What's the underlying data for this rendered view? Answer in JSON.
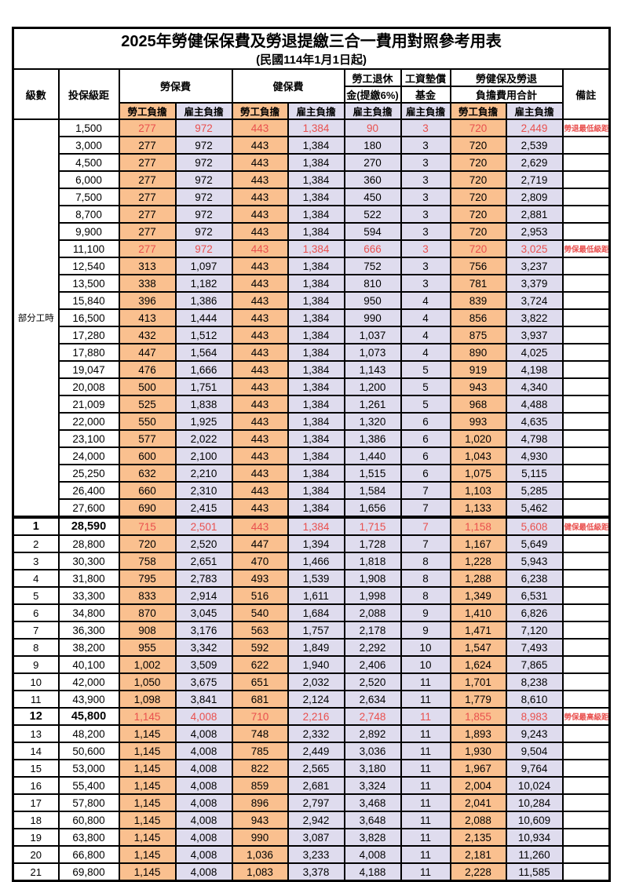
{
  "title": "2025年勞健保保費及勞退提繳三合一費用對照參考用表",
  "subtitle": "(民國114年1月1日起)",
  "colors": {
    "employee_share_bg": "#FAC08F",
    "employer_share_bg": "#DFDCEE",
    "highlight_red": "#E9504E",
    "border": "#000000"
  },
  "header": {
    "level": "級數",
    "bracket": "投保級距",
    "labor_insurance": "勞保費",
    "health_insurance": "健保費",
    "pension_line1": "勞工退休",
    "pension_line2": "金(提繳6%)",
    "wage_fund_line1": "工資墊償",
    "wage_fund_line2": "基金",
    "total_line1": "勞健保及勞退",
    "total_line2": "負擔費用合計",
    "remark": "備註",
    "employee": "勞工負擔",
    "employer": "雇主負擔"
  },
  "part_time_label": "部分工時",
  "part_time_rowspan": 23,
  "rows": [
    {
      "level": "",
      "bracket": "1,500",
      "li_emp": "277",
      "li_er": "972",
      "hi_emp": "443",
      "hi_er": "1,384",
      "pension": "90",
      "fund": "3",
      "tot_emp": "720",
      "tot_er": "2,449",
      "remark": "勞退最低級距",
      "red": true,
      "bold": false,
      "thick_top": false
    },
    {
      "level": "",
      "bracket": "3,000",
      "li_emp": "277",
      "li_er": "972",
      "hi_emp": "443",
      "hi_er": "1,384",
      "pension": "180",
      "fund": "3",
      "tot_emp": "720",
      "tot_er": "2,539",
      "remark": "",
      "red": false,
      "bold": false,
      "thick_top": false
    },
    {
      "level": "",
      "bracket": "4,500",
      "li_emp": "277",
      "li_er": "972",
      "hi_emp": "443",
      "hi_er": "1,384",
      "pension": "270",
      "fund": "3",
      "tot_emp": "720",
      "tot_er": "2,629",
      "remark": "",
      "red": false,
      "bold": false,
      "thick_top": false
    },
    {
      "level": "",
      "bracket": "6,000",
      "li_emp": "277",
      "li_er": "972",
      "hi_emp": "443",
      "hi_er": "1,384",
      "pension": "360",
      "fund": "3",
      "tot_emp": "720",
      "tot_er": "2,719",
      "remark": "",
      "red": false,
      "bold": false,
      "thick_top": false
    },
    {
      "level": "",
      "bracket": "7,500",
      "li_emp": "277",
      "li_er": "972",
      "hi_emp": "443",
      "hi_er": "1,384",
      "pension": "450",
      "fund": "3",
      "tot_emp": "720",
      "tot_er": "2,809",
      "remark": "",
      "red": false,
      "bold": false,
      "thick_top": false
    },
    {
      "level": "",
      "bracket": "8,700",
      "li_emp": "277",
      "li_er": "972",
      "hi_emp": "443",
      "hi_er": "1,384",
      "pension": "522",
      "fund": "3",
      "tot_emp": "720",
      "tot_er": "2,881",
      "remark": "",
      "red": false,
      "bold": false,
      "thick_top": false
    },
    {
      "level": "",
      "bracket": "9,900",
      "li_emp": "277",
      "li_er": "972",
      "hi_emp": "443",
      "hi_er": "1,384",
      "pension": "594",
      "fund": "3",
      "tot_emp": "720",
      "tot_er": "2,953",
      "remark": "",
      "red": false,
      "bold": false,
      "thick_top": false
    },
    {
      "level": "",
      "bracket": "11,100",
      "li_emp": "277",
      "li_er": "972",
      "hi_emp": "443",
      "hi_er": "1,384",
      "pension": "666",
      "fund": "3",
      "tot_emp": "720",
      "tot_er": "3,025",
      "remark": "勞保最低級距",
      "red": true,
      "bold": false,
      "thick_top": false
    },
    {
      "level": "",
      "bracket": "12,540",
      "li_emp": "313",
      "li_er": "1,097",
      "hi_emp": "443",
      "hi_er": "1,384",
      "pension": "752",
      "fund": "3",
      "tot_emp": "756",
      "tot_er": "3,237",
      "remark": "",
      "red": false,
      "bold": false,
      "thick_top": false
    },
    {
      "level": "",
      "bracket": "13,500",
      "li_emp": "338",
      "li_er": "1,182",
      "hi_emp": "443",
      "hi_er": "1,384",
      "pension": "810",
      "fund": "3",
      "tot_emp": "781",
      "tot_er": "3,379",
      "remark": "",
      "red": false,
      "bold": false,
      "thick_top": false
    },
    {
      "level": "",
      "bracket": "15,840",
      "li_emp": "396",
      "li_er": "1,386",
      "hi_emp": "443",
      "hi_er": "1,384",
      "pension": "950",
      "fund": "4",
      "tot_emp": "839",
      "tot_er": "3,724",
      "remark": "",
      "red": false,
      "bold": false,
      "thick_top": false
    },
    {
      "level": "",
      "bracket": "16,500",
      "li_emp": "413",
      "li_er": "1,444",
      "hi_emp": "443",
      "hi_er": "1,384",
      "pension": "990",
      "fund": "4",
      "tot_emp": "856",
      "tot_er": "3,822",
      "remark": "",
      "red": false,
      "bold": false,
      "thick_top": false
    },
    {
      "level": "",
      "bracket": "17,280",
      "li_emp": "432",
      "li_er": "1,512",
      "hi_emp": "443",
      "hi_er": "1,384",
      "pension": "1,037",
      "fund": "4",
      "tot_emp": "875",
      "tot_er": "3,937",
      "remark": "",
      "red": false,
      "bold": false,
      "thick_top": false
    },
    {
      "level": "",
      "bracket": "17,880",
      "li_emp": "447",
      "li_er": "1,564",
      "hi_emp": "443",
      "hi_er": "1,384",
      "pension": "1,073",
      "fund": "4",
      "tot_emp": "890",
      "tot_er": "4,025",
      "remark": "",
      "red": false,
      "bold": false,
      "thick_top": false
    },
    {
      "level": "",
      "bracket": "19,047",
      "li_emp": "476",
      "li_er": "1,666",
      "hi_emp": "443",
      "hi_er": "1,384",
      "pension": "1,143",
      "fund": "5",
      "tot_emp": "919",
      "tot_er": "4,198",
      "remark": "",
      "red": false,
      "bold": false,
      "thick_top": false
    },
    {
      "level": "",
      "bracket": "20,008",
      "li_emp": "500",
      "li_er": "1,751",
      "hi_emp": "443",
      "hi_er": "1,384",
      "pension": "1,200",
      "fund": "5",
      "tot_emp": "943",
      "tot_er": "4,340",
      "remark": "",
      "red": false,
      "bold": false,
      "thick_top": false
    },
    {
      "level": "",
      "bracket": "21,009",
      "li_emp": "525",
      "li_er": "1,838",
      "hi_emp": "443",
      "hi_er": "1,384",
      "pension": "1,261",
      "fund": "5",
      "tot_emp": "968",
      "tot_er": "4,488",
      "remark": "",
      "red": false,
      "bold": false,
      "thick_top": false
    },
    {
      "level": "",
      "bracket": "22,000",
      "li_emp": "550",
      "li_er": "1,925",
      "hi_emp": "443",
      "hi_er": "1,384",
      "pension": "1,320",
      "fund": "6",
      "tot_emp": "993",
      "tot_er": "4,635",
      "remark": "",
      "red": false,
      "bold": false,
      "thick_top": false
    },
    {
      "level": "",
      "bracket": "23,100",
      "li_emp": "577",
      "li_er": "2,022",
      "hi_emp": "443",
      "hi_er": "1,384",
      "pension": "1,386",
      "fund": "6",
      "tot_emp": "1,020",
      "tot_er": "4,798",
      "remark": "",
      "red": false,
      "bold": false,
      "thick_top": false
    },
    {
      "level": "",
      "bracket": "24,000",
      "li_emp": "600",
      "li_er": "2,100",
      "hi_emp": "443",
      "hi_er": "1,384",
      "pension": "1,440",
      "fund": "6",
      "tot_emp": "1,043",
      "tot_er": "4,930",
      "remark": "",
      "red": false,
      "bold": false,
      "thick_top": false
    },
    {
      "level": "",
      "bracket": "25,250",
      "li_emp": "632",
      "li_er": "2,210",
      "hi_emp": "443",
      "hi_er": "1,384",
      "pension": "1,515",
      "fund": "6",
      "tot_emp": "1,075",
      "tot_er": "5,115",
      "remark": "",
      "red": false,
      "bold": false,
      "thick_top": false
    },
    {
      "level": "",
      "bracket": "26,400",
      "li_emp": "660",
      "li_er": "2,310",
      "hi_emp": "443",
      "hi_er": "1,384",
      "pension": "1,584",
      "fund": "7",
      "tot_emp": "1,103",
      "tot_er": "5,285",
      "remark": "",
      "red": false,
      "bold": false,
      "thick_top": false
    },
    {
      "level": "",
      "bracket": "27,600",
      "li_emp": "690",
      "li_er": "2,415",
      "hi_emp": "443",
      "hi_er": "1,384",
      "pension": "1,656",
      "fund": "7",
      "tot_emp": "1,133",
      "tot_er": "5,462",
      "remark": "",
      "red": false,
      "bold": false,
      "thick_top": false
    },
    {
      "level": "1",
      "bracket": "28,590",
      "li_emp": "715",
      "li_er": "2,501",
      "hi_emp": "443",
      "hi_er": "1,384",
      "pension": "1,715",
      "fund": "7",
      "tot_emp": "1,158",
      "tot_er": "5,608",
      "remark": "健保最低級距",
      "red": true,
      "bold": true,
      "thick_top": true
    },
    {
      "level": "2",
      "bracket": "28,800",
      "li_emp": "720",
      "li_er": "2,520",
      "hi_emp": "447",
      "hi_er": "1,394",
      "pension": "1,728",
      "fund": "7",
      "tot_emp": "1,167",
      "tot_er": "5,649",
      "remark": "",
      "red": false,
      "bold": false,
      "thick_top": false
    },
    {
      "level": "3",
      "bracket": "30,300",
      "li_emp": "758",
      "li_er": "2,651",
      "hi_emp": "470",
      "hi_er": "1,466",
      "pension": "1,818",
      "fund": "8",
      "tot_emp": "1,228",
      "tot_er": "5,943",
      "remark": "",
      "red": false,
      "bold": false,
      "thick_top": false
    },
    {
      "level": "4",
      "bracket": "31,800",
      "li_emp": "795",
      "li_er": "2,783",
      "hi_emp": "493",
      "hi_er": "1,539",
      "pension": "1,908",
      "fund": "8",
      "tot_emp": "1,288",
      "tot_er": "6,238",
      "remark": "",
      "red": false,
      "bold": false,
      "thick_top": false
    },
    {
      "level": "5",
      "bracket": "33,300",
      "li_emp": "833",
      "li_er": "2,914",
      "hi_emp": "516",
      "hi_er": "1,611",
      "pension": "1,998",
      "fund": "8",
      "tot_emp": "1,349",
      "tot_er": "6,531",
      "remark": "",
      "red": false,
      "bold": false,
      "thick_top": false
    },
    {
      "level": "6",
      "bracket": "34,800",
      "li_emp": "870",
      "li_er": "3,045",
      "hi_emp": "540",
      "hi_er": "1,684",
      "pension": "2,088",
      "fund": "9",
      "tot_emp": "1,410",
      "tot_er": "6,826",
      "remark": "",
      "red": false,
      "bold": false,
      "thick_top": false
    },
    {
      "level": "7",
      "bracket": "36,300",
      "li_emp": "908",
      "li_er": "3,176",
      "hi_emp": "563",
      "hi_er": "1,757",
      "pension": "2,178",
      "fund": "9",
      "tot_emp": "1,471",
      "tot_er": "7,120",
      "remark": "",
      "red": false,
      "bold": false,
      "thick_top": false
    },
    {
      "level": "8",
      "bracket": "38,200",
      "li_emp": "955",
      "li_er": "3,342",
      "hi_emp": "592",
      "hi_er": "1,849",
      "pension": "2,292",
      "fund": "10",
      "tot_emp": "1,547",
      "tot_er": "7,493",
      "remark": "",
      "red": false,
      "bold": false,
      "thick_top": false
    },
    {
      "level": "9",
      "bracket": "40,100",
      "li_emp": "1,002",
      "li_er": "3,509",
      "hi_emp": "622",
      "hi_er": "1,940",
      "pension": "2,406",
      "fund": "10",
      "tot_emp": "1,624",
      "tot_er": "7,865",
      "remark": "",
      "red": false,
      "bold": false,
      "thick_top": false
    },
    {
      "level": "10",
      "bracket": "42,000",
      "li_emp": "1,050",
      "li_er": "3,675",
      "hi_emp": "651",
      "hi_er": "2,032",
      "pension": "2,520",
      "fund": "11",
      "tot_emp": "1,701",
      "tot_er": "8,238",
      "remark": "",
      "red": false,
      "bold": false,
      "thick_top": false
    },
    {
      "level": "11",
      "bracket": "43,900",
      "li_emp": "1,098",
      "li_er": "3,841",
      "hi_emp": "681",
      "hi_er": "2,124",
      "pension": "2,634",
      "fund": "11",
      "tot_emp": "1,779",
      "tot_er": "8,610",
      "remark": "",
      "red": false,
      "bold": false,
      "thick_top": false
    },
    {
      "level": "12",
      "bracket": "45,800",
      "li_emp": "1,145",
      "li_er": "4,008",
      "hi_emp": "710",
      "hi_er": "2,216",
      "pension": "2,748",
      "fund": "11",
      "tot_emp": "1,855",
      "tot_er": "8,983",
      "remark": "勞保最高級距",
      "red": true,
      "bold": true,
      "thick_top": false
    },
    {
      "level": "13",
      "bracket": "48,200",
      "li_emp": "1,145",
      "li_er": "4,008",
      "hi_emp": "748",
      "hi_er": "2,332",
      "pension": "2,892",
      "fund": "11",
      "tot_emp": "1,893",
      "tot_er": "9,243",
      "remark": "",
      "red": false,
      "bold": false,
      "thick_top": false
    },
    {
      "level": "14",
      "bracket": "50,600",
      "li_emp": "1,145",
      "li_er": "4,008",
      "hi_emp": "785",
      "hi_er": "2,449",
      "pension": "3,036",
      "fund": "11",
      "tot_emp": "1,930",
      "tot_er": "9,504",
      "remark": "",
      "red": false,
      "bold": false,
      "thick_top": false
    },
    {
      "level": "15",
      "bracket": "53,000",
      "li_emp": "1,145",
      "li_er": "4,008",
      "hi_emp": "822",
      "hi_er": "2,565",
      "pension": "3,180",
      "fund": "11",
      "tot_emp": "1,967",
      "tot_er": "9,764",
      "remark": "",
      "red": false,
      "bold": false,
      "thick_top": false
    },
    {
      "level": "16",
      "bracket": "55,400",
      "li_emp": "1,145",
      "li_er": "4,008",
      "hi_emp": "859",
      "hi_er": "2,681",
      "pension": "3,324",
      "fund": "11",
      "tot_emp": "2,004",
      "tot_er": "10,024",
      "remark": "",
      "red": false,
      "bold": false,
      "thick_top": false
    },
    {
      "level": "17",
      "bracket": "57,800",
      "li_emp": "1,145",
      "li_er": "4,008",
      "hi_emp": "896",
      "hi_er": "2,797",
      "pension": "3,468",
      "fund": "11",
      "tot_emp": "2,041",
      "tot_er": "10,284",
      "remark": "",
      "red": false,
      "bold": false,
      "thick_top": false
    },
    {
      "level": "18",
      "bracket": "60,800",
      "li_emp": "1,145",
      "li_er": "4,008",
      "hi_emp": "943",
      "hi_er": "2,942",
      "pension": "3,648",
      "fund": "11",
      "tot_emp": "2,088",
      "tot_er": "10,609",
      "remark": "",
      "red": false,
      "bold": false,
      "thick_top": false
    },
    {
      "level": "19",
      "bracket": "63,800",
      "li_emp": "1,145",
      "li_er": "4,008",
      "hi_emp": "990",
      "hi_er": "3,087",
      "pension": "3,828",
      "fund": "11",
      "tot_emp": "2,135",
      "tot_er": "10,934",
      "remark": "",
      "red": false,
      "bold": false,
      "thick_top": false
    },
    {
      "level": "20",
      "bracket": "66,800",
      "li_emp": "1,145",
      "li_er": "4,008",
      "hi_emp": "1,036",
      "hi_er": "3,233",
      "pension": "4,008",
      "fund": "11",
      "tot_emp": "2,181",
      "tot_er": "11,260",
      "remark": "",
      "red": false,
      "bold": false,
      "thick_top": false
    },
    {
      "level": "21",
      "bracket": "69,800",
      "li_emp": "1,145",
      "li_er": "4,008",
      "hi_emp": "1,083",
      "hi_er": "3,378",
      "pension": "4,188",
      "fund": "11",
      "tot_emp": "2,228",
      "tot_er": "11,585",
      "remark": "",
      "red": false,
      "bold": false,
      "thick_top": false
    }
  ]
}
